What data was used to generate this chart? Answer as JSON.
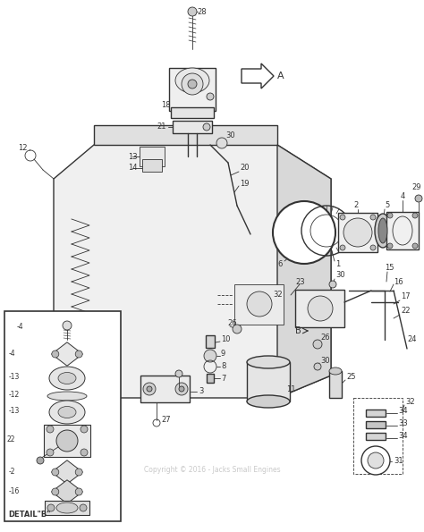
{
  "background_color": "#ffffff",
  "diagram_color": "#333333",
  "watermark_text": "Copyright © 2016 - Jacks Small Engines",
  "watermark_color": "#bbbbbb",
  "detail_b_label": "DETAIL\"B\"",
  "figsize": [
    4.74,
    5.95
  ],
  "dpi": 100,
  "lw_main": 1.0,
  "lw_thin": 0.6,
  "lw_thick": 1.4
}
